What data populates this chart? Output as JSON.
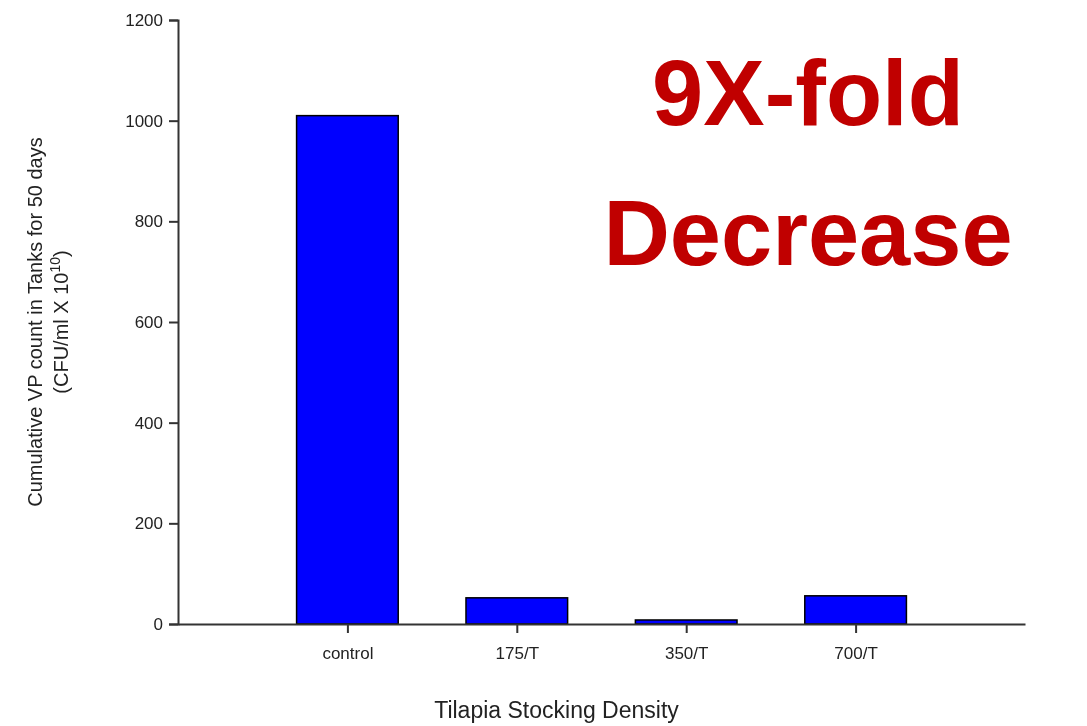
{
  "chart_data": {
    "type": "bar",
    "categories": [
      "control",
      "175/T",
      "350/T",
      "700/T"
    ],
    "values": [
      1010,
      52,
      8,
      56
    ],
    "color": "#0000ff",
    "ylim": [
      0,
      1200
    ],
    "yticks": [
      0,
      200,
      400,
      600,
      800,
      1000,
      1200
    ],
    "ylabel": "Cumulative VP count in Tanks for 50 days\n(CFU/ml X 10$^{10}$)",
    "xlabel": "Tilapia Stocking Density",
    "annotations": [
      "9X-fold Decrease"
    ],
    "grid": false
  }
}
